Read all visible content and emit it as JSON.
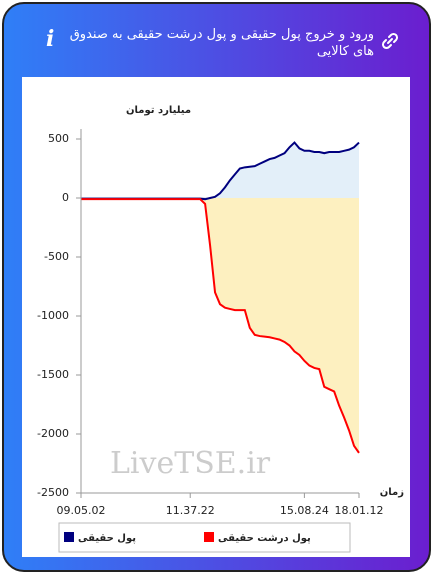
{
  "chart_data": {
    "type": "line",
    "title": "ورود و خروج پول حقیقی و پول درشت حقیقی به صندوق های کالایی",
    "y_label": "میلیارد تومان",
    "x_label": "زمان",
    "watermark": "LiveTSE.ir",
    "categories": [
      "09.05.02",
      null,
      null,
      null,
      null,
      null,
      null,
      null,
      null,
      null,
      null,
      null,
      null,
      null,
      null,
      null,
      null,
      null,
      null,
      null,
      null,
      null,
      "11.37.22",
      null,
      null,
      null,
      null,
      null,
      null,
      null,
      null,
      null,
      null,
      null,
      null,
      null,
      null,
      null,
      null,
      null,
      null,
      null,
      null,
      null,
      null,
      "15.08.24",
      null,
      null,
      null,
      null,
      null,
      null,
      null,
      null,
      null,
      null,
      "18.01.12"
    ],
    "series": [
      {
        "name": "پول حقیقی",
        "color": "#00007f",
        "fill": "#e3eff9",
        "values": [
          -5,
          -5,
          -5,
          -5,
          -5,
          -5,
          -5,
          -5,
          -5,
          -5,
          -5,
          -5,
          -5,
          -5,
          -5,
          -5,
          -5,
          -5,
          -5,
          -5,
          -5,
          -5,
          -5,
          -5,
          -5,
          -10,
          0,
          10,
          40,
          90,
          150,
          200,
          250,
          260,
          265,
          270,
          290,
          310,
          330,
          340,
          360,
          380,
          430,
          470,
          420,
          400,
          400,
          390,
          390,
          380,
          390,
          390,
          390,
          400,
          410,
          430,
          470
        ]
      },
      {
        "name": "پول درشت حقیقی",
        "color": "#ff0000",
        "fill": "#fdf0c0",
        "values": [
          -10,
          -10,
          -10,
          -10,
          -10,
          -10,
          -10,
          -10,
          -10,
          -10,
          -10,
          -10,
          -10,
          -10,
          -10,
          -10,
          -10,
          -10,
          -10,
          -10,
          -10,
          -10,
          -10,
          -10,
          -10,
          -50,
          -400,
          -800,
          -900,
          -930,
          -940,
          -950,
          -950,
          -950,
          -1100,
          -1160,
          -1170,
          -1175,
          -1180,
          -1190,
          -1200,
          -1220,
          -1250,
          -1300,
          -1330,
          -1380,
          -1420,
          -1440,
          -1450,
          -1600,
          -1620,
          -1640,
          -1760,
          -1860,
          -1970,
          -2100,
          -2160
        ]
      }
    ],
    "ylim": [
      -2500,
      500
    ],
    "yticks": [
      500,
      0,
      -500,
      -1000,
      -1500,
      -2000,
      -2500
    ]
  }
}
